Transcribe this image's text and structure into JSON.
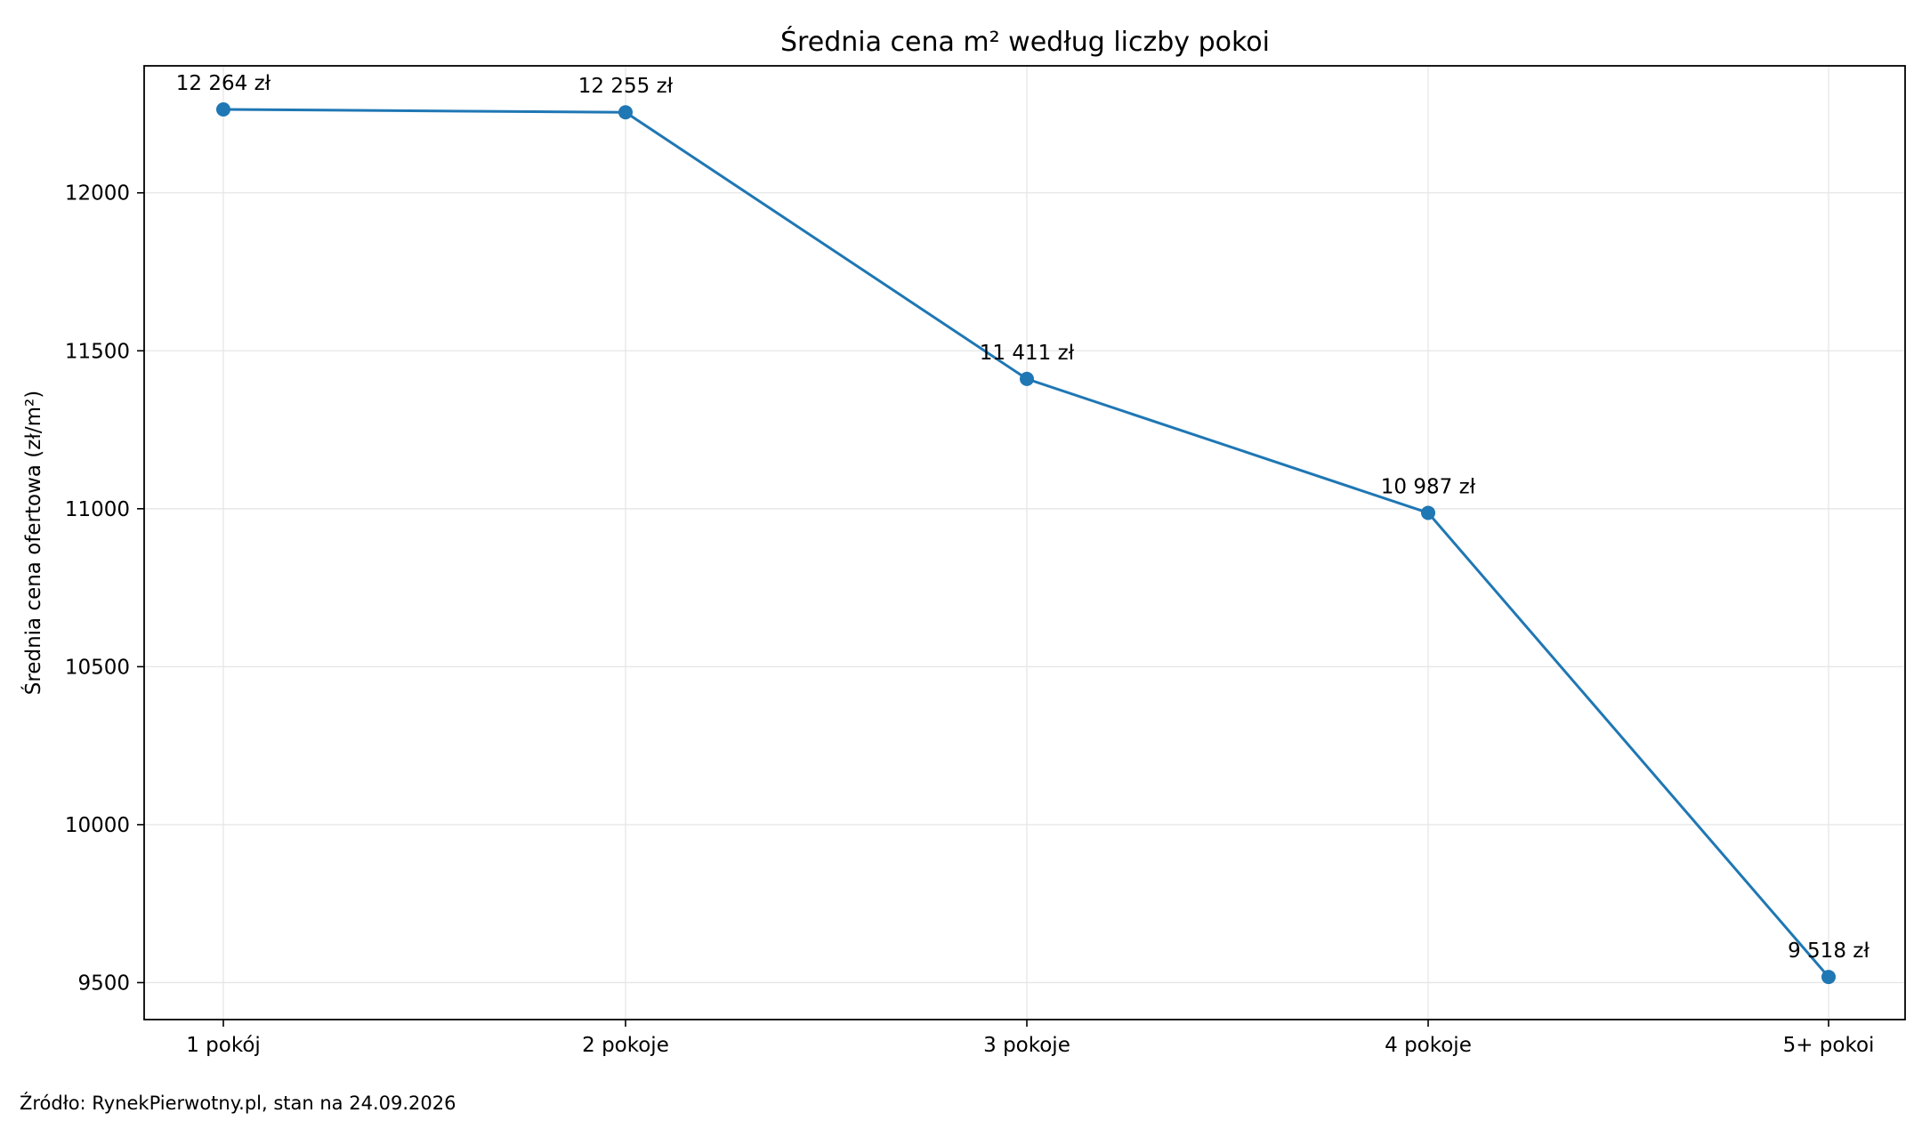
{
  "chart_data": {
    "type": "line",
    "title": "Średnia cena m² według liczby pokoi",
    "xlabel": "",
    "ylabel": "Średnia cena ofertowa (zł/m²)",
    "categories": [
      "1 pokój",
      "2 pokoje",
      "3 pokoje",
      "4 pokoje",
      "5+ pokoi"
    ],
    "values": [
      12264,
      12255,
      11411,
      10987,
      9518
    ],
    "data_labels": [
      "12 264 zł",
      "12 255 zł",
      "11 411 zł",
      "10 987 zł",
      "9 518 zł"
    ],
    "ylim": [
      9383,
      12402
    ],
    "yticks": [
      9500,
      10000,
      10500,
      11000,
      11500,
      12000
    ],
    "ytick_labels": [
      "9500",
      "10000",
      "10500",
      "11000",
      "11500",
      "12000"
    ],
    "grid": true,
    "marker": "circle",
    "series_color": "#1f77b4"
  },
  "footer": {
    "source": "Źródło: RynekPierwotny.pl, stan na 24.09.2026"
  }
}
